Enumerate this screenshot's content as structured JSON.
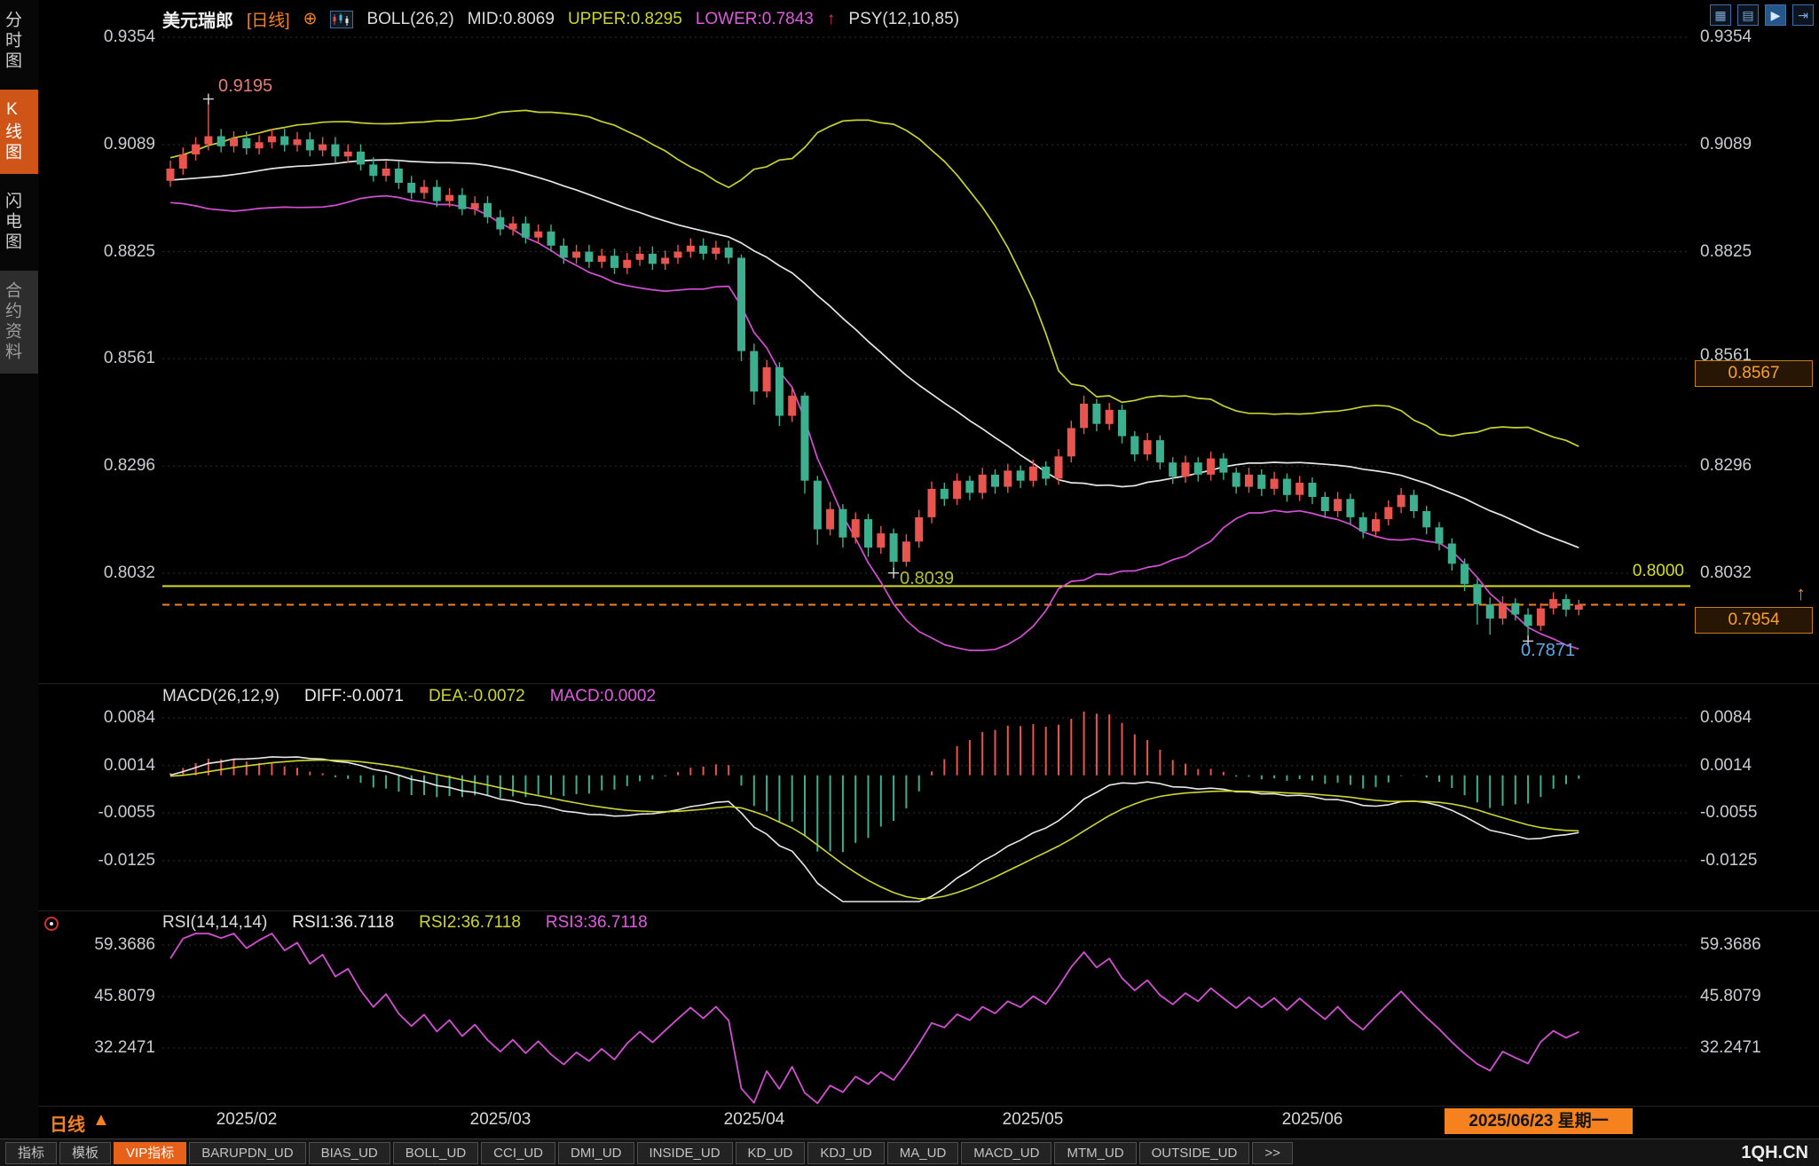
{
  "header": {
    "symbol": "美元瑞郎",
    "period_tag": "[日线]",
    "plus_icon": "⊕",
    "boll_label": "BOLL(26,2)",
    "mid_label": "MID:0.8069",
    "upper_label": "UPPER:0.8295",
    "lower_label": "LOWER:0.7843",
    "arrow_up": "↑",
    "psy_label": "PSY(12,10,85)"
  },
  "sidebar": {
    "items": [
      {
        "label": "分时图"
      },
      {
        "label": "K线图"
      },
      {
        "label": "闪电图"
      },
      {
        "label": "合约资料"
      }
    ]
  },
  "price_axis": {
    "labels": [
      "0.9354",
      "0.9089",
      "0.8825",
      "0.8561",
      "0.8296",
      "0.8032"
    ],
    "marker": "0.8567",
    "level_label": "0.8000",
    "last_price": "0.7954",
    "arrow": "↑"
  },
  "annotations": {
    "high": "0.9195",
    "pivot_low": "0.8039",
    "low": "0.7871"
  },
  "macd_panel": {
    "title": "MACD(26,12,9)",
    "diff": "DIFF:-0.0071",
    "dea": "DEA:-0.0072",
    "macd": "MACD:0.0002",
    "axis": [
      "0.0084",
      "0.0014",
      "-0.0055",
      "-0.0125"
    ]
  },
  "rsi_panel": {
    "title": "RSI(14,14,14)",
    "rsi1": "RSI1:36.7118",
    "rsi2": "RSI2:36.7118",
    "rsi3": "RSI3:36.7118",
    "axis": [
      "59.3686",
      "45.8079",
      "32.2471"
    ]
  },
  "xaxis": {
    "months": [
      "2025/02",
      "2025/03",
      "2025/04",
      "2025/05",
      "2025/06"
    ],
    "current_date": "2025/06/23 星期一",
    "period": "日线",
    "period_arrow": "▲"
  },
  "toolbar": {
    "tabs": [
      "指标",
      "模板",
      "VIP指标",
      "BARUPDN_UD",
      "BIAS_UD",
      "BOLL_UD",
      "CCI_UD",
      "DMI_UD",
      "INSIDE_UD",
      "KD_UD",
      "KDJ_UD",
      "MA_UD",
      "MACD_UD",
      "MTM_UD",
      "OUTSIDE_UD"
    ],
    "more": ">>",
    "brand": "1QH.CN"
  },
  "icons": {
    "grid_layout": "▦",
    "list_layout": "▤",
    "play": "▶",
    "forward": "⇥"
  },
  "chart_data": {
    "type": "candlestick",
    "symbol": "美元瑞郎 (USD/CHF)",
    "period": "日线",
    "price_ticks": [
      0.9354,
      0.9089,
      0.8825,
      0.8561,
      0.8296,
      0.8032
    ],
    "macd_ticks": [
      0.0084,
      0.0014,
      -0.0055,
      -0.0125
    ],
    "rsi_ticks": [
      59.3686,
      45.8079,
      32.2471
    ],
    "months": [
      {
        "label": "2025/02",
        "index": 6
      },
      {
        "label": "2025/03",
        "index": 26
      },
      {
        "label": "2025/04",
        "index": 46
      },
      {
        "label": "2025/05",
        "index": 68
      },
      {
        "label": "2025/06",
        "index": 90
      }
    ],
    "current_date": "2025/06/23 星期一",
    "current_date_index": 110,
    "markers": {
      "high": {
        "index": 3,
        "value": 0.9195
      },
      "pivot_low": {
        "index": 57,
        "value": 0.8039
      },
      "low": {
        "index": 107,
        "value": 0.7871
      }
    },
    "levels": {
      "horizontal_line": 0.8,
      "last_price": 0.7954,
      "right_axis_marker": 0.8567
    },
    "indicators": {
      "boll": {
        "n": 26,
        "k": 2,
        "mid": 0.8069,
        "upper": 0.8295,
        "lower": 0.7843
      },
      "macd": {
        "fast": 26,
        "slow": 12,
        "signal": 9,
        "diff": -0.0071,
        "dea": -0.0072,
        "macd": 0.0002
      },
      "rsi": {
        "n": 14,
        "rsi1": 36.7118,
        "rsi2": 36.7118,
        "rsi3": 36.7118
      },
      "psy": [
        12,
        10,
        85
      ]
    },
    "colors": {
      "up": "#e8544e",
      "down": "#3cb08e",
      "boll_upper": "#c9d22c",
      "boll_mid": "#e6e6e6",
      "boll_lower": "#d44fd4",
      "dif": "#e8e8e8",
      "dea": "#cdd52e",
      "rsi": "#d44fd4",
      "level_line": "#d6de20",
      "last_price_line": "#f5821f",
      "accent": "#f5821f"
    },
    "candles": [
      [
        0.9,
        0.905,
        0.8985,
        0.903
      ],
      [
        0.903,
        0.9082,
        0.9015,
        0.9065
      ],
      [
        0.9065,
        0.9108,
        0.905,
        0.909
      ],
      [
        0.909,
        0.9195,
        0.9075,
        0.911
      ],
      [
        0.911,
        0.9128,
        0.907,
        0.9085
      ],
      [
        0.9085,
        0.9122,
        0.907,
        0.9105
      ],
      [
        0.9105,
        0.9122,
        0.9065,
        0.908
      ],
      [
        0.908,
        0.9112,
        0.9065,
        0.9095
      ],
      [
        0.9095,
        0.9128,
        0.908,
        0.911
      ],
      [
        0.911,
        0.9128,
        0.9072,
        0.9088
      ],
      [
        0.9088,
        0.912,
        0.9072,
        0.9102
      ],
      [
        0.9102,
        0.912,
        0.906,
        0.9075
      ],
      [
        0.9075,
        0.9108,
        0.906,
        0.909
      ],
      [
        0.909,
        0.9108,
        0.9045,
        0.906
      ],
      [
        0.906,
        0.909,
        0.9045,
        0.9072
      ],
      [
        0.9072,
        0.909,
        0.9025,
        0.904
      ],
      [
        0.904,
        0.9058,
        0.8998,
        0.9012
      ],
      [
        0.9012,
        0.9048,
        0.8998,
        0.903
      ],
      [
        0.903,
        0.9048,
        0.898,
        0.8995
      ],
      [
        0.8995,
        0.9012,
        0.8955,
        0.897
      ],
      [
        0.897,
        0.9002,
        0.8955,
        0.8985
      ],
      [
        0.8985,
        0.9002,
        0.8935,
        0.895
      ],
      [
        0.895,
        0.8982,
        0.8935,
        0.8965
      ],
      [
        0.8965,
        0.8982,
        0.8915,
        0.893
      ],
      [
        0.893,
        0.8962,
        0.8915,
        0.8945
      ],
      [
        0.8945,
        0.8962,
        0.8895,
        0.891
      ],
      [
        0.891,
        0.8928,
        0.8865,
        0.888
      ],
      [
        0.888,
        0.8912,
        0.8865,
        0.8895
      ],
      [
        0.8895,
        0.8912,
        0.8845,
        0.886
      ],
      [
        0.886,
        0.8892,
        0.8845,
        0.8875
      ],
      [
        0.8875,
        0.8892,
        0.8825,
        0.884
      ],
      [
        0.884,
        0.8858,
        0.8795,
        0.881
      ],
      [
        0.881,
        0.8842,
        0.8795,
        0.8825
      ],
      [
        0.8825,
        0.8842,
        0.8785,
        0.88
      ],
      [
        0.88,
        0.8832,
        0.8785,
        0.8815
      ],
      [
        0.8815,
        0.8832,
        0.877,
        0.8785
      ],
      [
        0.8785,
        0.8822,
        0.877,
        0.8805
      ],
      [
        0.8805,
        0.8838,
        0.879,
        0.882
      ],
      [
        0.882,
        0.8838,
        0.878,
        0.8795
      ],
      [
        0.8795,
        0.8828,
        0.878,
        0.881
      ],
      [
        0.881,
        0.8842,
        0.8795,
        0.8825
      ],
      [
        0.8825,
        0.8858,
        0.881,
        0.884
      ],
      [
        0.884,
        0.8858,
        0.8805,
        0.882
      ],
      [
        0.882,
        0.8852,
        0.8805,
        0.8835
      ],
      [
        0.8835,
        0.8852,
        0.8795,
        0.881
      ],
      [
        0.881,
        0.8818,
        0.8555,
        0.858
      ],
      [
        0.858,
        0.8598,
        0.8448,
        0.848
      ],
      [
        0.848,
        0.8558,
        0.8465,
        0.854
      ],
      [
        0.854,
        0.8552,
        0.8395,
        0.842
      ],
      [
        0.842,
        0.8488,
        0.8405,
        0.847
      ],
      [
        0.847,
        0.8478,
        0.8228,
        0.826
      ],
      [
        0.826,
        0.8272,
        0.8102,
        0.814
      ],
      [
        0.814,
        0.8208,
        0.8125,
        0.819
      ],
      [
        0.819,
        0.8202,
        0.8095,
        0.812
      ],
      [
        0.812,
        0.8182,
        0.8105,
        0.8165
      ],
      [
        0.8165,
        0.8178,
        0.8072,
        0.8095
      ],
      [
        0.8095,
        0.8148,
        0.808,
        0.813
      ],
      [
        0.813,
        0.8142,
        0.8039,
        0.806
      ],
      [
        0.806,
        0.8128,
        0.8048,
        0.811
      ],
      [
        0.811,
        0.8188,
        0.8095,
        0.817
      ],
      [
        0.817,
        0.8258,
        0.8155,
        0.824
      ],
      [
        0.824,
        0.8255,
        0.8198,
        0.8215
      ],
      [
        0.8215,
        0.8278,
        0.82,
        0.826
      ],
      [
        0.826,
        0.8272,
        0.8212,
        0.823
      ],
      [
        0.823,
        0.8292,
        0.8215,
        0.8275
      ],
      [
        0.8275,
        0.8288,
        0.8228,
        0.8245
      ],
      [
        0.8245,
        0.8302,
        0.823,
        0.8285
      ],
      [
        0.8285,
        0.8298,
        0.8242,
        0.826
      ],
      [
        0.826,
        0.8312,
        0.8245,
        0.8295
      ],
      [
        0.8295,
        0.8308,
        0.8248,
        0.8265
      ],
      [
        0.8265,
        0.8338,
        0.825,
        0.832
      ],
      [
        0.832,
        0.8408,
        0.8305,
        0.839
      ],
      [
        0.839,
        0.847,
        0.8375,
        0.845
      ],
      [
        0.845,
        0.8462,
        0.8382,
        0.84
      ],
      [
        0.84,
        0.8452,
        0.8385,
        0.8435
      ],
      [
        0.8435,
        0.8448,
        0.8352,
        0.837
      ],
      [
        0.837,
        0.8382,
        0.8308,
        0.8325
      ],
      [
        0.8325,
        0.8378,
        0.831,
        0.836
      ],
      [
        0.836,
        0.8372,
        0.8288,
        0.8305
      ],
      [
        0.8305,
        0.8318,
        0.8252,
        0.827
      ],
      [
        0.827,
        0.8322,
        0.8255,
        0.8305
      ],
      [
        0.8305,
        0.8318,
        0.8258,
        0.8275
      ],
      [
        0.8275,
        0.8332,
        0.826,
        0.8315
      ],
      [
        0.8315,
        0.8328,
        0.8262,
        0.828
      ],
      [
        0.828,
        0.8292,
        0.8228,
        0.8245
      ],
      [
        0.8245,
        0.8292,
        0.823,
        0.8275
      ],
      [
        0.8275,
        0.8288,
        0.8222,
        0.824
      ],
      [
        0.824,
        0.8282,
        0.8225,
        0.8265
      ],
      [
        0.8265,
        0.8278,
        0.8208,
        0.8225
      ],
      [
        0.8225,
        0.8272,
        0.821,
        0.8255
      ],
      [
        0.8255,
        0.8268,
        0.8202,
        0.822
      ],
      [
        0.822,
        0.8232,
        0.8168,
        0.8185
      ],
      [
        0.8185,
        0.8232,
        0.817,
        0.8215
      ],
      [
        0.8215,
        0.8228,
        0.8152,
        0.817
      ],
      [
        0.817,
        0.8182,
        0.8118,
        0.8135
      ],
      [
        0.8135,
        0.8182,
        0.812,
        0.8165
      ],
      [
        0.8165,
        0.8212,
        0.815,
        0.8195
      ],
      [
        0.8195,
        0.8242,
        0.818,
        0.8225
      ],
      [
        0.8225,
        0.8238,
        0.8168,
        0.8185
      ],
      [
        0.8185,
        0.8198,
        0.8128,
        0.8145
      ],
      [
        0.8145,
        0.8158,
        0.8088,
        0.8105
      ],
      [
        0.8105,
        0.8118,
        0.8038,
        0.8055
      ],
      [
        0.8055,
        0.8068,
        0.7988,
        0.8005
      ],
      [
        0.8005,
        0.8018,
        0.7905,
        0.7955
      ],
      [
        0.7955,
        0.7972,
        0.788,
        0.792
      ],
      [
        0.792,
        0.7975,
        0.7905,
        0.7958
      ],
      [
        0.7958,
        0.797,
        0.7915,
        0.793
      ],
      [
        0.793,
        0.7945,
        0.7871,
        0.7902
      ],
      [
        0.7902,
        0.7958,
        0.789,
        0.7945
      ],
      [
        0.7945,
        0.7985,
        0.793,
        0.7968
      ],
      [
        0.7968,
        0.798,
        0.7925,
        0.7942
      ],
      [
        0.7942,
        0.7966,
        0.7928,
        0.7954
      ]
    ]
  }
}
